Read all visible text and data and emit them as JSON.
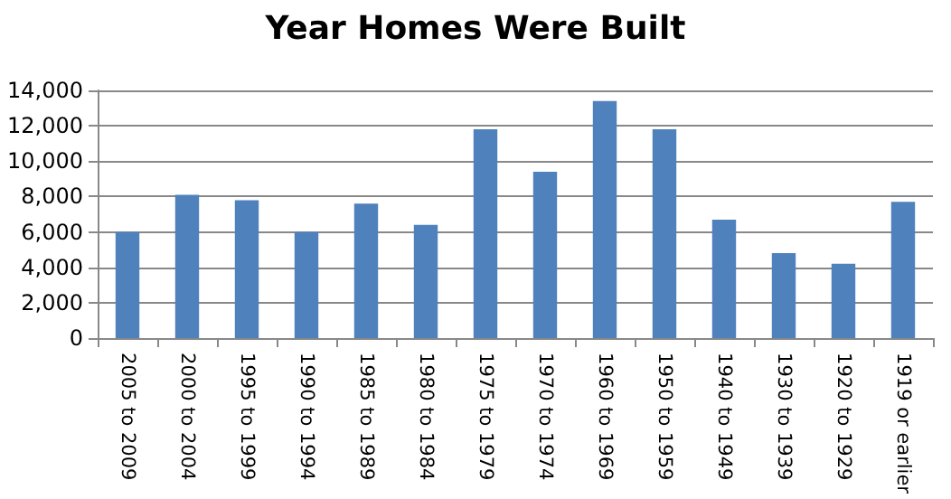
{
  "chart_data": {
    "type": "bar",
    "title": "Year Homes Were Built",
    "categories": [
      "2005 to 2009",
      "2000 to 2004",
      "1995 to 1999",
      "1990 to 1994",
      "1985 to 1989",
      "1980 to 1984",
      "1975 to 1979",
      "1970 to 1974",
      "1960 to 1969",
      "1950 to 1959",
      "1940 to 1949",
      "1930 to 1939",
      "1920 to 1929",
      "1919 or earlier"
    ],
    "values": [
      6000,
      8100,
      7800,
      6000,
      7600,
      6400,
      11800,
      9400,
      13400,
      11800,
      6700,
      4800,
      4200,
      7700
    ],
    "color": "#4f81bd",
    "ylim": [
      0,
      14000
    ],
    "yticks": [
      0,
      {
        "value": 2000,
        "label": "2,000"
      },
      {
        "value": 4000,
        "label": "4,000"
      },
      {
        "value": 6000,
        "label": "6,000"
      },
      {
        "value": 8000,
        "label": "8,000"
      },
      {
        "value": 10000,
        "label": "10,000"
      },
      {
        "value": 12000,
        "label": "12,000"
      },
      {
        "value": 14000,
        "label": "14,000"
      }
    ],
    "grid": "y"
  }
}
